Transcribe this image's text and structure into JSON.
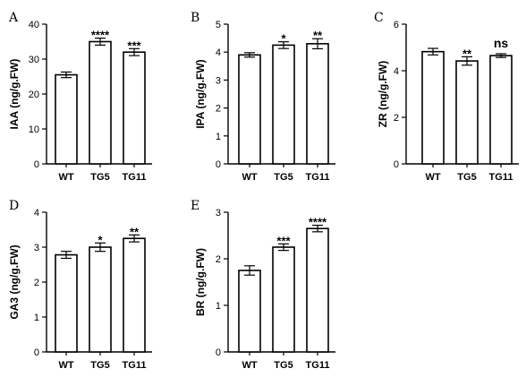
{
  "chart_data": [
    {
      "type": "bar",
      "panel": "A",
      "ylabel": "IAA (ng/g.FW)",
      "ylim": [
        0,
        40
      ],
      "yticks": [
        0,
        10,
        20,
        30,
        40
      ],
      "categories": [
        "WT",
        "TG5",
        "TG11"
      ],
      "values": [
        25.5,
        35.0,
        32.0
      ],
      "errors": [
        0.8,
        1.0,
        1.0
      ],
      "significance": [
        "",
        "****",
        "***"
      ]
    },
    {
      "type": "bar",
      "panel": "B",
      "ylabel": "IPA (ng/g.FW)",
      "ylim": [
        0,
        5
      ],
      "yticks": [
        0,
        1,
        2,
        3,
        4,
        5
      ],
      "categories": [
        "WT",
        "TG5",
        "TG11"
      ],
      "values": [
        3.9,
        4.25,
        4.3
      ],
      "errors": [
        0.08,
        0.12,
        0.18
      ],
      "significance": [
        "",
        "*",
        "**"
      ]
    },
    {
      "type": "bar",
      "panel": "C",
      "ylabel": "ZR (ng/g.FW)",
      "ylim": [
        0,
        6
      ],
      "yticks": [
        0,
        2,
        4,
        6
      ],
      "categories": [
        "WT",
        "TG5",
        "TG11"
      ],
      "values": [
        4.82,
        4.42,
        4.65
      ],
      "errors": [
        0.14,
        0.18,
        0.08
      ],
      "significance": [
        "",
        "**",
        "ns"
      ]
    },
    {
      "type": "bar",
      "panel": "D",
      "ylabel": "GA3 (ng/g.FW)",
      "ylim": [
        0,
        4
      ],
      "yticks": [
        0,
        1,
        2,
        3,
        4
      ],
      "categories": [
        "WT",
        "TG5",
        "TG11"
      ],
      "values": [
        2.78,
        3.0,
        3.25
      ],
      "errors": [
        0.1,
        0.12,
        0.1
      ],
      "significance": [
        "",
        "*",
        "**"
      ]
    },
    {
      "type": "bar",
      "panel": "E",
      "ylabel": "BR (ng/g.FW)",
      "ylim": [
        0,
        3
      ],
      "yticks": [
        0,
        1,
        2,
        3
      ],
      "categories": [
        "WT",
        "TG5",
        "TG11"
      ],
      "values": [
        1.75,
        2.25,
        2.65
      ],
      "errors": [
        0.1,
        0.07,
        0.07
      ],
      "significance": [
        "",
        "***",
        "****"
      ]
    }
  ]
}
